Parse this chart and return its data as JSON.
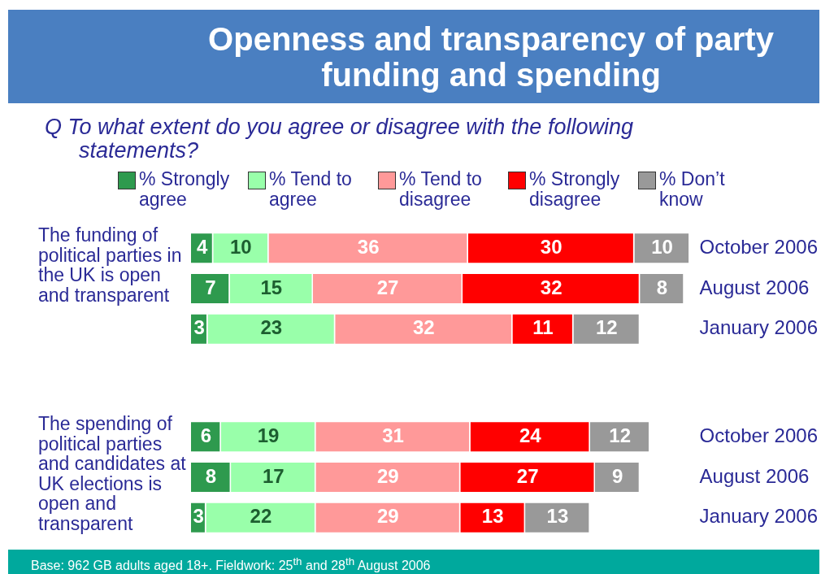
{
  "chart_data": [
    {
      "type": "bar",
      "title": "Openness and transparency of party funding and spending",
      "subtitle": "Q  To what extent do you agree or disagree with the following statements?",
      "ylabel": "The funding of political parties in the UK is open and transparent",
      "orientation": "horizontal",
      "stacked": true,
      "tick_labels": "y",
      "data_labels": true,
      "legend": "top",
      "categories": [
        "October 2006",
        "August 2006",
        "January 2006"
      ],
      "series": [
        {
          "name": "% Strongly agree",
          "color": "#2e9a4e",
          "values": [
            4,
            7,
            3
          ]
        },
        {
          "name": "% Tend to agree",
          "color": "#99ffaa",
          "values": [
            10,
            15,
            23
          ]
        },
        {
          "name": "% Tend to disagree",
          "color": "#ff9999",
          "values": [
            36,
            27,
            32
          ]
        },
        {
          "name": "% Strongly disagree",
          "color": "#ff0000",
          "values": [
            30,
            32,
            11
          ]
        },
        {
          "name": "% Don’t know",
          "color": "#999999",
          "values": [
            10,
            8,
            12
          ]
        }
      ]
    },
    {
      "type": "bar",
      "ylabel": "The spending of political parties and candidates at UK elections is open and transparent",
      "orientation": "horizontal",
      "stacked": true,
      "tick_labels": "y",
      "data_labels": true,
      "categories": [
        "October 2006",
        "August 2006",
        "January 2006"
      ],
      "annotations": [
        "Base: 962 GB adults aged 18+.  Fieldwork: 25$^{th}$ and 28$^{th}$ August 2006"
      ],
      "series": [
        {
          "color": "#2e9a4e",
          "values": [
            6,
            8,
            3
          ]
        },
        {
          "color": "#99ffaa",
          "values": [
            19,
            17,
            22
          ]
        },
        {
          "color": "#ff9999",
          "values": [
            31,
            29,
            29
          ]
        },
        {
          "color": "#ff0000",
          "values": [
            24,
            27,
            13
          ]
        },
        {
          "color": "#999999",
          "values": [
            12,
            9,
            13
          ]
        }
      ]
    }
  ]
}
